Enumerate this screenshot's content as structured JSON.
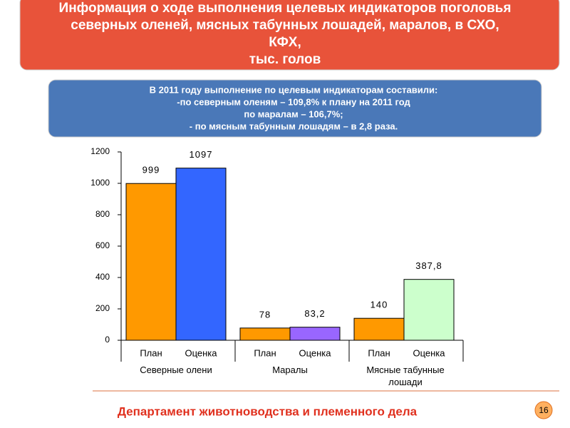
{
  "chart_data": {
    "type": "bar",
    "title_lines": [
      "Информация о ходе выполнения целевых индикаторов поголовья",
      "северных оленей, мясных табунных лошадей, маралов, в СХО,",
      "КФХ,",
      "тыс. голов"
    ],
    "note_lines": [
      "В 2011 году  выполнение по целевым индикаторам составили:",
      "-по северным оленям – 109,8% к плану на 2011 год",
      "по маралам – 106,7%;",
      "- по мясным табунным лошадям – в 2,8 раза."
    ],
    "categories": [
      "План",
      "Оценка",
      "План",
      "Оценка",
      "План",
      "Оценка"
    ],
    "groups": [
      "Северные олени",
      "Маралы",
      "Мясные табунные лошади"
    ],
    "values": [
      999,
      1097,
      78,
      83.2,
      140,
      387.8
    ],
    "value_labels": [
      "999",
      "1097",
      "78",
      "83,2",
      "140",
      "387,8"
    ],
    "colors": [
      "#ff9900",
      "#3366ff",
      "#ff9900",
      "#9966ff",
      "#ff9900",
      "#ccffcc"
    ],
    "ylim": [
      0,
      1200
    ],
    "yticks": [
      0,
      200,
      400,
      600,
      800,
      1000,
      1200
    ],
    "footer": "Департамент животноводства и племенного дела",
    "page_number": "16"
  }
}
